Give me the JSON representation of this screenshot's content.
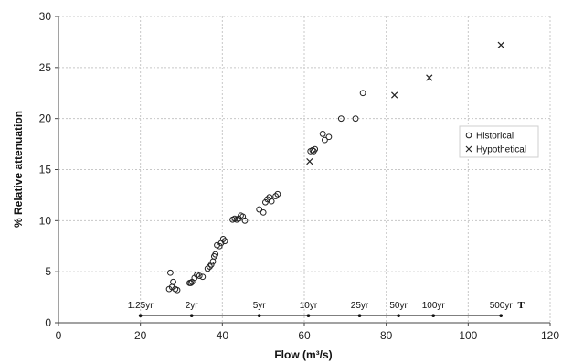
{
  "chart_data": {
    "type": "scatter",
    "xlabel": "Flow (m³/s)",
    "ylabel": "% Relative attenuation",
    "xlim": [
      0,
      120
    ],
    "ylim": [
      0,
      30
    ],
    "x_ticks": [
      0,
      20,
      40,
      60,
      80,
      100,
      120
    ],
    "y_ticks": [
      0,
      5,
      10,
      15,
      20,
      25,
      30
    ],
    "grid": true,
    "legend_position": "right",
    "series": [
      {
        "name": "Historical",
        "marker": "circle",
        "points": [
          [
            27,
            3.3
          ],
          [
            27.3,
            4.9
          ],
          [
            27.7,
            3.5
          ],
          [
            28,
            4.0
          ],
          [
            28.5,
            3.3
          ],
          [
            29,
            3.2
          ],
          [
            32,
            3.9
          ],
          [
            32.3,
            3.9
          ],
          [
            32.6,
            4.0
          ],
          [
            33.2,
            4.4
          ],
          [
            33.8,
            4.7
          ],
          [
            34.4,
            4.6
          ],
          [
            35.2,
            4.5
          ],
          [
            36.4,
            5.3
          ],
          [
            36.9,
            5.5
          ],
          [
            37.3,
            5.7
          ],
          [
            37.7,
            6.0
          ],
          [
            38,
            6.5
          ],
          [
            38.3,
            6.7
          ],
          [
            38.7,
            7.6
          ],
          [
            39.3,
            7.5
          ],
          [
            39.7,
            7.8
          ],
          [
            40.2,
            8.2
          ],
          [
            40.6,
            8.0
          ],
          [
            42.5,
            10.1
          ],
          [
            43,
            10.2
          ],
          [
            43.5,
            10.1
          ],
          [
            44,
            10.2
          ],
          [
            44.5,
            10.5
          ],
          [
            45,
            10.4
          ],
          [
            45.5,
            10.0
          ],
          [
            49,
            11.1
          ],
          [
            50,
            10.8
          ],
          [
            50.5,
            11.8
          ],
          [
            51,
            12.1
          ],
          [
            51.5,
            12.3
          ],
          [
            52,
            11.9
          ],
          [
            53,
            12.4
          ],
          [
            53.5,
            12.6
          ],
          [
            61.5,
            16.8
          ],
          [
            62,
            16.9
          ],
          [
            62.3,
            16.8
          ],
          [
            62.6,
            17.0
          ],
          [
            64.5,
            18.5
          ],
          [
            65,
            17.9
          ],
          [
            66,
            18.2
          ],
          [
            69,
            20.0
          ],
          [
            72.5,
            20.0
          ],
          [
            74.3,
            22.5
          ]
        ]
      },
      {
        "name": "Hypothetical",
        "marker": "cross",
        "points": [
          [
            61.3,
            15.8
          ],
          [
            82,
            22.3
          ],
          [
            90.5,
            24.0
          ],
          [
            108,
            27.2
          ]
        ]
      }
    ],
    "return_periods": {
      "y": 0.7,
      "marks": [
        {
          "x": 20,
          "label": "1.25yr"
        },
        {
          "x": 32.5,
          "label": "2yr"
        },
        {
          "x": 49,
          "label": "5yr"
        },
        {
          "x": 61,
          "label": "10yr"
        },
        {
          "x": 73.5,
          "label": "25yr"
        },
        {
          "x": 83,
          "label": "50yr"
        },
        {
          "x": 91.5,
          "label": "100yr"
        },
        {
          "x": 108,
          "label": "500yr"
        }
      ],
      "end_label": "T"
    }
  }
}
